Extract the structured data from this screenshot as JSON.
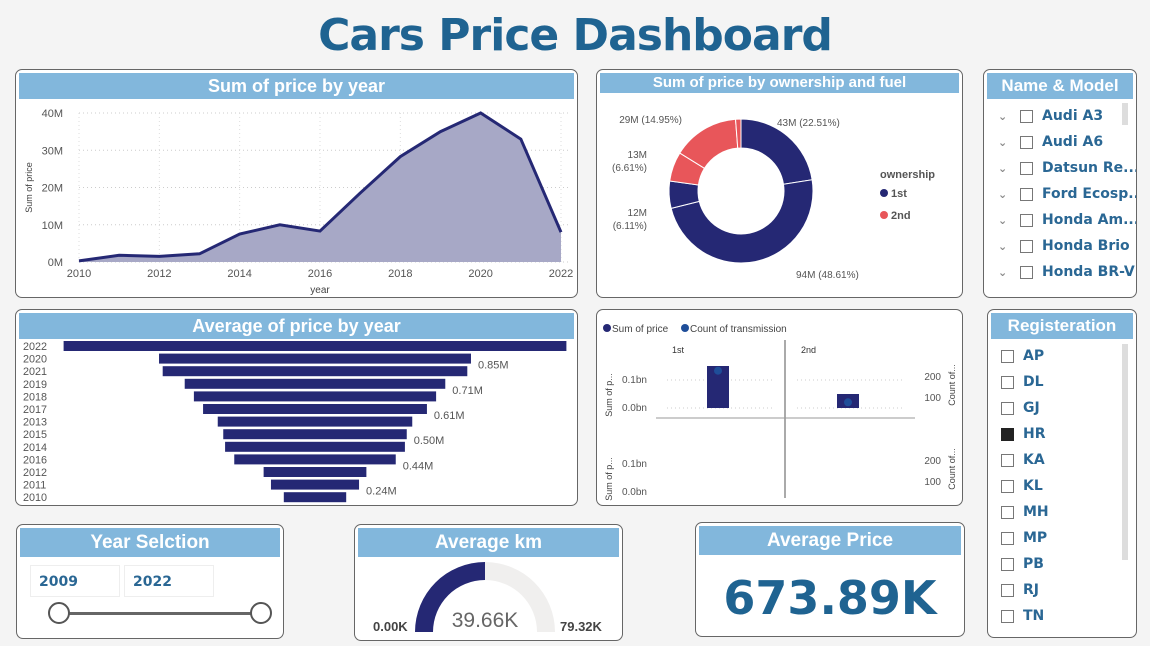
{
  "title": "Cars Price Dashboard",
  "colors": {
    "header": "#82b7dc",
    "navy": "#252874",
    "red": "#e8565a",
    "area_fill": "#a7a8c6",
    "text": "#2a6794"
  },
  "area_chart": {
    "title": "Sum of price by year",
    "chart_data": {
      "type": "area",
      "xlabel": "year",
      "ylabel": "Sum of price",
      "x": [
        2010,
        2011,
        2012,
        2013,
        2014,
        2015,
        2016,
        2017,
        2018,
        2019,
        2020,
        2021,
        2022
      ],
      "values": [
        0.3,
        1.8,
        1.5,
        2.2,
        7.5,
        10,
        8.3,
        18.5,
        28.3,
        35,
        40,
        33,
        8
      ],
      "unit": "M",
      "ylim": [
        0,
        40
      ],
      "yticks": [
        "0M",
        "10M",
        "20M",
        "30M",
        "40M"
      ],
      "xticks": [
        "2010",
        "2012",
        "2014",
        "2016",
        "2018",
        "2020",
        "2022"
      ],
      "grid": true
    }
  },
  "donut_chart": {
    "title": "Sum of price by ownership and fuel",
    "chart_data": {
      "type": "pie",
      "legend_title": "ownership",
      "legend": [
        {
          "name": "1st",
          "color": "#252874"
        },
        {
          "name": "2nd",
          "color": "#e8565a"
        }
      ],
      "slices": [
        {
          "owner": "1st",
          "value": 43,
          "pct": 22.51,
          "label": "43M (22.51%)"
        },
        {
          "owner": "1st",
          "value": 94,
          "pct": 48.61,
          "label": "94M (48.61%)"
        },
        {
          "owner": "1st",
          "value": 12,
          "pct": 6.11,
          "label": "12M (6.11%)"
        },
        {
          "owner": "2nd",
          "value": 13,
          "pct": 6.61,
          "label": "13M (6.61%)"
        },
        {
          "owner": "2nd",
          "value": 29,
          "pct": 14.95,
          "label": "29M (14.95%)"
        },
        {
          "owner": "2nd",
          "value": 2.3,
          "pct": 1.21,
          "label": ""
        }
      ],
      "legend_position": "right"
    }
  },
  "name_model": {
    "title": "Name & Model",
    "items": [
      "Audi A3",
      "Audi A6",
      "Datsun Re...",
      "Ford Ecosp...",
      "Honda Am...",
      "Honda Brio",
      "Honda BR-V"
    ]
  },
  "funnel_chart": {
    "title": "Average of price by year",
    "chart_data": {
      "type": "bar",
      "categories": [
        "2022",
        "2020",
        "2021",
        "2019",
        "2018",
        "2017",
        "2013",
        "2015",
        "2014",
        "2016",
        "2012",
        "2011",
        "2010"
      ],
      "values": [
        1.37,
        0.85,
        0.83,
        0.71,
        0.66,
        0.61,
        0.53,
        0.5,
        0.49,
        0.44,
        0.28,
        0.24,
        0.17
      ],
      "unit": "M",
      "data_labels": {
        "2020": "0.85M",
        "2019": "0.71M",
        "2017": "0.61M",
        "2015": "0.50M",
        "2016": "0.44M",
        "2011": "0.24M"
      }
    }
  },
  "combo_chart": {
    "chart_data": {
      "type": "bar",
      "legend": [
        "Sum of price",
        "Count of transmission"
      ],
      "panels": [
        "1st",
        "2nd"
      ],
      "sum_of_price_bn": [
        0.15,
        0.05
      ],
      "count_of_transmission": [
        230,
        70
      ],
      "left_axis_label": "Sum of p...",
      "right_axis_label": "Count of...",
      "left_ticks": [
        "0.0bn",
        "0.1bn"
      ],
      "right_ticks": [
        "100",
        "200"
      ]
    }
  },
  "registration": {
    "title": "Registeration",
    "items": [
      {
        "label": "AP",
        "checked": false
      },
      {
        "label": "DL",
        "checked": false
      },
      {
        "label": "GJ",
        "checked": false
      },
      {
        "label": "HR",
        "checked": true
      },
      {
        "label": "KA",
        "checked": false
      },
      {
        "label": "KL",
        "checked": false
      },
      {
        "label": "MH",
        "checked": false
      },
      {
        "label": "MP",
        "checked": false
      },
      {
        "label": "PB",
        "checked": false
      },
      {
        "label": "RJ",
        "checked": false
      },
      {
        "label": "TN",
        "checked": false
      }
    ]
  },
  "year_selection": {
    "title": "Year Selction",
    "start": "2009",
    "end": "2022"
  },
  "avg_km": {
    "title": "Average km",
    "value": "39.66K",
    "min": "0.00K",
    "max": "79.32K",
    "fraction": 0.5
  },
  "avg_price": {
    "title": "Average Price",
    "value": "673.89K"
  }
}
